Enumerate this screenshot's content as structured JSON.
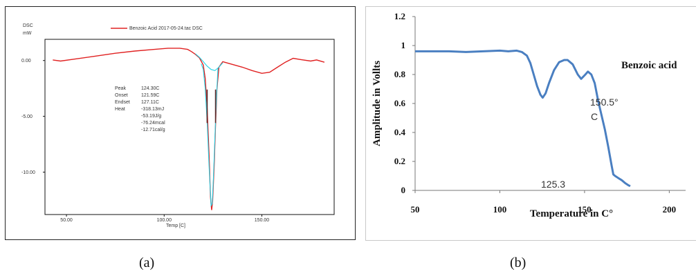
{
  "captions": {
    "a": "(a)",
    "b": "(b)"
  },
  "colors": {
    "dsc_curve": "#e02020",
    "baseline": "#22d3e6",
    "amplitude_curve": "#4a7fc1"
  },
  "chart_data": [
    {
      "type": "line",
      "panel": "a",
      "title": "",
      "ylabel": "DSC\nmW",
      "ylabel_lines": [
        "DSC",
        "mW"
      ],
      "xlabel": "Temp [C]",
      "xlim": [
        39,
        187
      ],
      "ylim": [
        -13.8,
        1.9
      ],
      "xticks": [
        50,
        100,
        150
      ],
      "xtick_labels": [
        "50.00",
        "100.00",
        "150.00"
      ],
      "yticks": [
        0,
        -5,
        -10
      ],
      "ytick_labels": [
        "0.00",
        "-5.00",
        "-10.00"
      ],
      "legend": {
        "label": "Benzoic Acid 2017-05-24.tac DSC",
        "placement": "top-center"
      },
      "annotations": [
        {
          "label": "Peak",
          "value": "124.30C"
        },
        {
          "label": "Onset",
          "value": "121.59C"
        },
        {
          "label": "Endset",
          "value": "127.11C"
        },
        {
          "label": "Heat",
          "value": "-318.13mJ"
        },
        {
          "label": "",
          "value": "-53.19J/g"
        },
        {
          "label": "",
          "value": "-76.24mcal"
        },
        {
          "label": "",
          "value": "-12.71cal/g"
        }
      ],
      "series": [
        {
          "name": "Benzoic Acid 2017-05-24.tac DSC",
          "x": [
            43,
            47,
            55,
            65,
            75,
            85,
            95,
            102,
            108,
            112,
            114,
            116,
            118,
            120,
            121,
            122,
            123,
            123.7,
            124.3,
            124.8,
            125.5,
            126.2,
            127,
            128,
            130,
            135,
            140,
            145,
            150,
            154,
            158,
            162,
            166,
            170,
            175,
            178,
            182
          ],
          "y": [
            0.05,
            -0.05,
            0.15,
            0.4,
            0.65,
            0.85,
            1.0,
            1.1,
            1.1,
            1.0,
            0.8,
            0.55,
            0.25,
            -0.4,
            -1.6,
            -4.3,
            -8.5,
            -12.2,
            -13.4,
            -12.6,
            -9.8,
            -6.2,
            -2.6,
            -0.6,
            -0.1,
            -0.35,
            -0.6,
            -0.9,
            -1.15,
            -1.05,
            -0.6,
            -0.15,
            0.2,
            0.08,
            -0.05,
            0.05,
            -0.15
          ]
        },
        {
          "name": "baseline",
          "x": [
            116,
            118,
            120,
            122,
            124,
            126,
            128,
            130
          ],
          "y": [
            0.6,
            0.3,
            -0.1,
            -0.5,
            -0.8,
            -0.9,
            -0.6,
            -0.2
          ]
        },
        {
          "name": "peak outline",
          "x": [
            119,
            120,
            121,
            122,
            123,
            124,
            124.6,
            125.2,
            126,
            126.8,
            127.5
          ],
          "y": [
            -0.3,
            -0.8,
            -2.5,
            -5.5,
            -9.5,
            -13.0,
            -12.8,
            -10.5,
            -6.8,
            -3.2,
            -0.7
          ]
        }
      ]
    },
    {
      "type": "line",
      "panel": "b",
      "title": "",
      "xlabel": "Temperature in C°",
      "ylabel": "Amplitude in Vollts",
      "xlim": [
        50,
        217
      ],
      "ylim": [
        0,
        1.2
      ],
      "xticks": [
        50,
        100,
        150,
        200
      ],
      "xtick_labels": [
        "50",
        "100",
        "150",
        "200"
      ],
      "yticks": [
        0,
        0.2,
        0.4,
        0.6,
        0.8,
        1,
        1.2
      ],
      "ytick_labels": [
        "0",
        "0.2",
        "0.4",
        "0.6",
        "0.8",
        "1",
        "1.2"
      ],
      "series_label": "Benzoic acid",
      "annotations": [
        {
          "text": "125.3",
          "x": 125.3,
          "y": 0.64
        },
        {
          "text": "150.5°\nC",
          "lines": [
            "150.5°",
            "C"
          ],
          "x": 150.5,
          "y": 0.8
        }
      ],
      "series": [
        {
          "name": "Benzoic acid",
          "x": [
            50,
            60,
            70,
            80,
            90,
            100,
            105,
            110,
            113,
            116,
            118,
            120,
            122,
            124,
            125.3,
            127,
            129,
            132,
            135,
            138,
            140,
            143,
            146,
            148,
            150.5,
            152,
            154,
            156,
            158,
            160,
            162,
            164,
            166,
            167,
            168,
            170,
            172,
            174,
            176,
            177
          ],
          "y": [
            0.96,
            0.96,
            0.96,
            0.955,
            0.96,
            0.965,
            0.96,
            0.965,
            0.955,
            0.93,
            0.88,
            0.8,
            0.72,
            0.66,
            0.64,
            0.67,
            0.74,
            0.83,
            0.885,
            0.9,
            0.9,
            0.87,
            0.8,
            0.77,
            0.8,
            0.82,
            0.8,
            0.74,
            0.62,
            0.52,
            0.42,
            0.3,
            0.17,
            0.11,
            0.1,
            0.085,
            0.07,
            0.05,
            0.035,
            0.03
          ]
        }
      ]
    }
  ]
}
